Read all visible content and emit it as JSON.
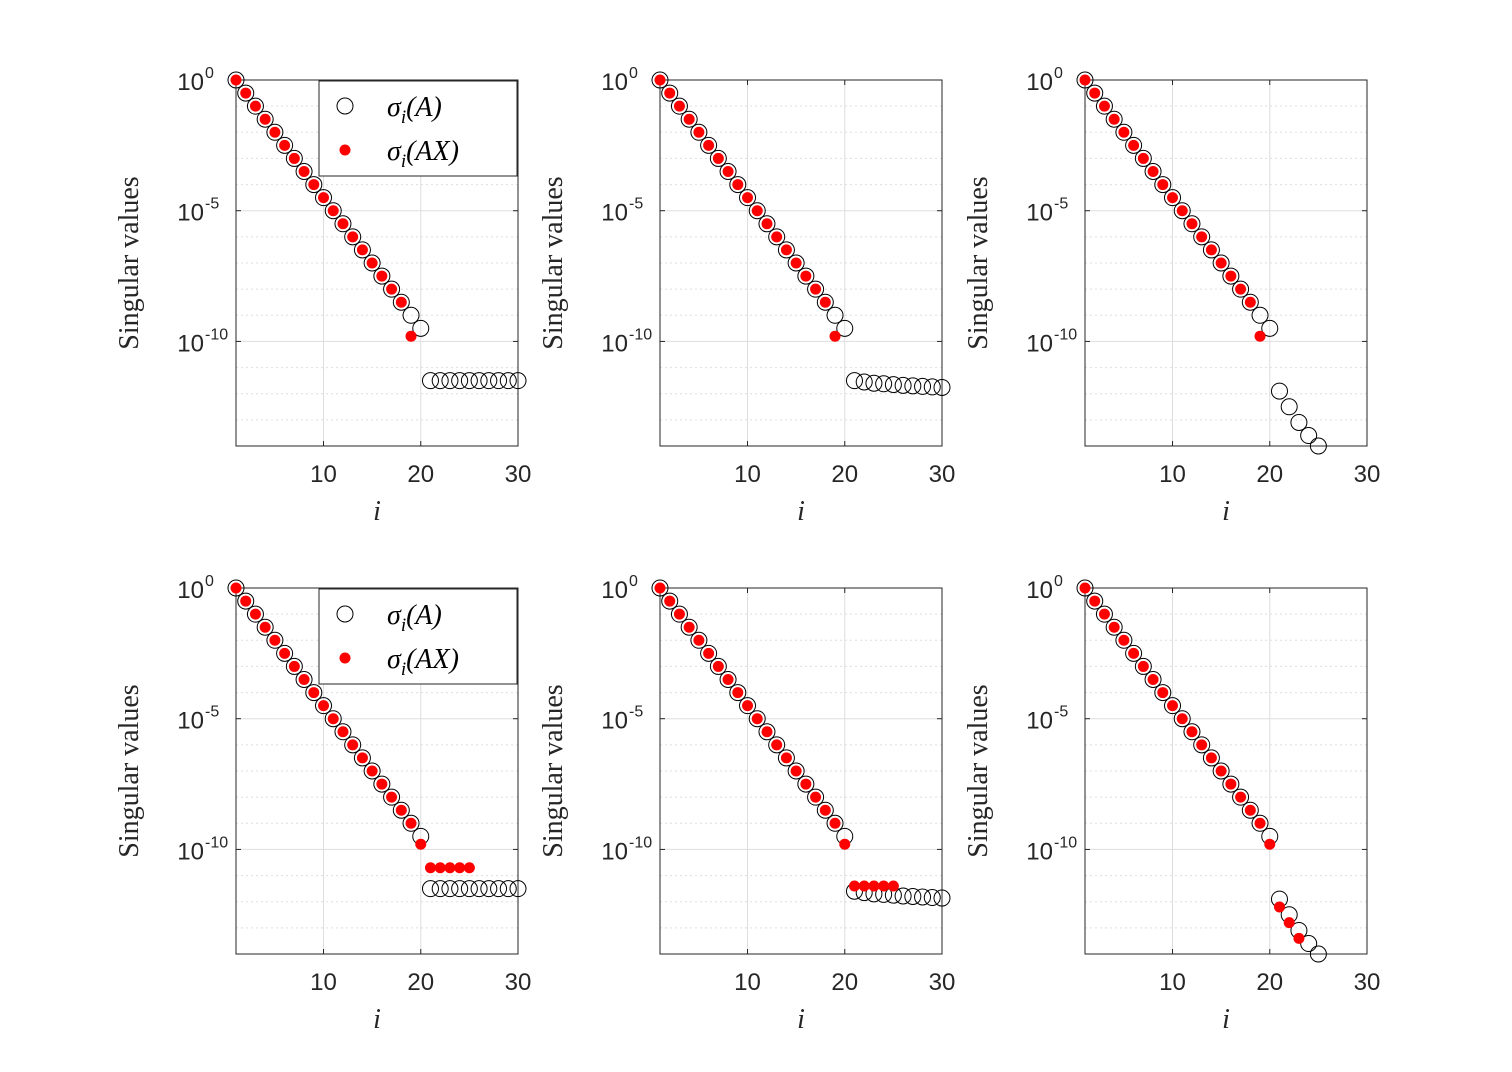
{
  "figure": {
    "colors": {
      "sigma_A": "#000000",
      "sigma_AX": "#ff0000",
      "grid": "#dedede"
    }
  },
  "chart_data": [
    {
      "type": "scatter",
      "xlabel": "i",
      "ylabel": "Singular values",
      "xlim": [
        1,
        30
      ],
      "ylim_log10": [
        -14,
        0
      ],
      "yscale": "log",
      "grid": true,
      "legend": "top-right",
      "xticks": [
        "10",
        "20",
        "30"
      ],
      "yticks": [
        {
          "base": "10",
          "exp": "0"
        },
        {
          "base": "10",
          "exp": "-5"
        },
        {
          "base": "10",
          "exp": "-10"
        }
      ],
      "series": [
        {
          "name": "σi(A)",
          "marker": "open-circle",
          "x": [
            1,
            2,
            3,
            4,
            5,
            6,
            7,
            8,
            9,
            10,
            11,
            12,
            13,
            14,
            15,
            16,
            17,
            18,
            19,
            20,
            21,
            22,
            23,
            24,
            25,
            26,
            27,
            28,
            29,
            30
          ],
          "log10_y": [
            0,
            -0.5,
            -1,
            -1.5,
            -2,
            -2.5,
            -3,
            -3.5,
            -4,
            -4.5,
            -5,
            -5.5,
            -6,
            -6.5,
            -7,
            -7.5,
            -8,
            -8.5,
            -9,
            -9.5,
            -11.5,
            -11.5,
            -11.5,
            -11.5,
            -11.5,
            -11.5,
            -11.5,
            -11.5,
            -11.5,
            -11.5
          ]
        },
        {
          "name": "σi(AX)",
          "marker": "filled-dot",
          "x": [
            1,
            2,
            3,
            4,
            5,
            6,
            7,
            8,
            9,
            10,
            11,
            12,
            13,
            14,
            15,
            16,
            17,
            18,
            19
          ],
          "log10_y": [
            0,
            -0.5,
            -1,
            -1.5,
            -2,
            -2.5,
            -3,
            -3.5,
            -4,
            -4.5,
            -5,
            -5.5,
            -6,
            -6.5,
            -7,
            -7.5,
            -8,
            -8.5,
            -9.8
          ]
        }
      ]
    },
    {
      "type": "scatter",
      "xlabel": "i",
      "ylabel": "Singular values",
      "xlim": [
        1,
        30
      ],
      "ylim_log10": [
        -14,
        0
      ],
      "yscale": "log",
      "grid": true,
      "xticks": [
        "10",
        "20",
        "30"
      ],
      "yticks": [
        {
          "base": "10",
          "exp": "0"
        },
        {
          "base": "10",
          "exp": "-5"
        },
        {
          "base": "10",
          "exp": "-10"
        }
      ],
      "series": [
        {
          "marker": "open-circle",
          "x": [
            1,
            2,
            3,
            4,
            5,
            6,
            7,
            8,
            9,
            10,
            11,
            12,
            13,
            14,
            15,
            16,
            17,
            18,
            19,
            20,
            21,
            22,
            23,
            24,
            25,
            26,
            27,
            28,
            29,
            30
          ],
          "log10_y": [
            0,
            -0.5,
            -1,
            -1.5,
            -2,
            -2.5,
            -3,
            -3.5,
            -4,
            -4.5,
            -5,
            -5.5,
            -6,
            -6.5,
            -7,
            -7.5,
            -8,
            -8.5,
            -9,
            -9.5,
            -11.5,
            -11.55,
            -11.6,
            -11.62,
            -11.65,
            -11.68,
            -11.7,
            -11.72,
            -11.74,
            -11.76
          ]
        },
        {
          "marker": "filled-dot",
          "x": [
            1,
            2,
            3,
            4,
            5,
            6,
            7,
            8,
            9,
            10,
            11,
            12,
            13,
            14,
            15,
            16,
            17,
            18,
            19
          ],
          "log10_y": [
            0,
            -0.5,
            -1,
            -1.5,
            -2,
            -2.5,
            -3,
            -3.5,
            -4,
            -4.5,
            -5,
            -5.5,
            -6,
            -6.5,
            -7,
            -7.5,
            -8,
            -8.5,
            -9.8
          ]
        }
      ]
    },
    {
      "type": "scatter",
      "xlabel": "i",
      "ylabel": "Singular values",
      "xlim": [
        1,
        30
      ],
      "ylim_log10": [
        -14,
        0
      ],
      "yscale": "log",
      "grid": true,
      "xticks": [
        "10",
        "20",
        "30"
      ],
      "yticks": [
        {
          "base": "10",
          "exp": "0"
        },
        {
          "base": "10",
          "exp": "-5"
        },
        {
          "base": "10",
          "exp": "-10"
        }
      ],
      "series": [
        {
          "marker": "open-circle",
          "x": [
            1,
            2,
            3,
            4,
            5,
            6,
            7,
            8,
            9,
            10,
            11,
            12,
            13,
            14,
            15,
            16,
            17,
            18,
            19,
            20,
            21,
            22,
            23,
            24,
            25
          ],
          "log10_y": [
            0,
            -0.5,
            -1,
            -1.5,
            -2,
            -2.5,
            -3,
            -3.5,
            -4,
            -4.5,
            -5,
            -5.5,
            -6,
            -6.5,
            -7,
            -7.5,
            -8,
            -8.5,
            -9,
            -9.5,
            -11.9,
            -12.5,
            -13.1,
            -13.6,
            -14
          ]
        },
        {
          "marker": "filled-dot",
          "x": [
            1,
            2,
            3,
            4,
            5,
            6,
            7,
            8,
            9,
            10,
            11,
            12,
            13,
            14,
            15,
            16,
            17,
            18,
            19
          ],
          "log10_y": [
            0,
            -0.5,
            -1,
            -1.5,
            -2,
            -2.5,
            -3,
            -3.5,
            -4,
            -4.5,
            -5,
            -5.5,
            -6,
            -6.5,
            -7,
            -7.5,
            -8,
            -8.5,
            -9.8
          ]
        }
      ]
    },
    {
      "type": "scatter",
      "xlabel": "i",
      "ylabel": "Singular values",
      "xlim": [
        1,
        30
      ],
      "ylim_log10": [
        -14,
        0
      ],
      "yscale": "log",
      "grid": true,
      "legend": "top-right",
      "xticks": [
        "10",
        "20",
        "30"
      ],
      "yticks": [
        {
          "base": "10",
          "exp": "0"
        },
        {
          "base": "10",
          "exp": "-5"
        },
        {
          "base": "10",
          "exp": "-10"
        }
      ],
      "series": [
        {
          "name": "σi(A)",
          "marker": "open-circle",
          "x": [
            1,
            2,
            3,
            4,
            5,
            6,
            7,
            8,
            9,
            10,
            11,
            12,
            13,
            14,
            15,
            16,
            17,
            18,
            19,
            20,
            21,
            22,
            23,
            24,
            25,
            26,
            27,
            28,
            29,
            30
          ],
          "log10_y": [
            0,
            -0.5,
            -1,
            -1.5,
            -2,
            -2.5,
            -3,
            -3.5,
            -4,
            -4.5,
            -5,
            -5.5,
            -6,
            -6.5,
            -7,
            -7.5,
            -8,
            -8.5,
            -9,
            -9.5,
            -11.5,
            -11.5,
            -11.5,
            -11.5,
            -11.5,
            -11.5,
            -11.5,
            -11.5,
            -11.5,
            -11.5
          ]
        },
        {
          "name": "σi(AX)",
          "marker": "filled-dot",
          "x": [
            1,
            2,
            3,
            4,
            5,
            6,
            7,
            8,
            9,
            10,
            11,
            12,
            13,
            14,
            15,
            16,
            17,
            18,
            19,
            20,
            21,
            22,
            23,
            24,
            25
          ],
          "log10_y": [
            0,
            -0.5,
            -1,
            -1.5,
            -2,
            -2.5,
            -3,
            -3.5,
            -4,
            -4.5,
            -5,
            -5.5,
            -6,
            -6.5,
            -7,
            -7.5,
            -8,
            -8.5,
            -9,
            -9.8,
            -10.7,
            -10.7,
            -10.7,
            -10.7,
            -10.7
          ]
        }
      ]
    },
    {
      "type": "scatter",
      "xlabel": "i",
      "ylabel": "Singular values",
      "xlim": [
        1,
        30
      ],
      "ylim_log10": [
        -14,
        0
      ],
      "yscale": "log",
      "grid": true,
      "xticks": [
        "10",
        "20",
        "30"
      ],
      "yticks": [
        {
          "base": "10",
          "exp": "0"
        },
        {
          "base": "10",
          "exp": "-5"
        },
        {
          "base": "10",
          "exp": "-10"
        }
      ],
      "series": [
        {
          "marker": "open-circle",
          "x": [
            1,
            2,
            3,
            4,
            5,
            6,
            7,
            8,
            9,
            10,
            11,
            12,
            13,
            14,
            15,
            16,
            17,
            18,
            19,
            20,
            21,
            22,
            23,
            24,
            25,
            26,
            27,
            28,
            29,
            30
          ],
          "log10_y": [
            0,
            -0.5,
            -1,
            -1.5,
            -2,
            -2.5,
            -3,
            -3.5,
            -4,
            -4.5,
            -5,
            -5.5,
            -6,
            -6.5,
            -7,
            -7.5,
            -8,
            -8.5,
            -9,
            -9.5,
            -11.6,
            -11.65,
            -11.7,
            -11.72,
            -11.75,
            -11.78,
            -11.8,
            -11.82,
            -11.84,
            -11.86
          ]
        },
        {
          "marker": "filled-dot",
          "x": [
            1,
            2,
            3,
            4,
            5,
            6,
            7,
            8,
            9,
            10,
            11,
            12,
            13,
            14,
            15,
            16,
            17,
            18,
            19,
            20,
            21,
            22,
            23,
            24,
            25
          ],
          "log10_y": [
            0,
            -0.5,
            -1,
            -1.5,
            -2,
            -2.5,
            -3,
            -3.5,
            -4,
            -4.5,
            -5,
            -5.5,
            -6,
            -6.5,
            -7,
            -7.5,
            -8,
            -8.5,
            -9,
            -9.8,
            -11.4,
            -11.4,
            -11.4,
            -11.4,
            -11.4
          ]
        }
      ]
    },
    {
      "type": "scatter",
      "xlabel": "i",
      "ylabel": "Singular values",
      "xlim": [
        1,
        30
      ],
      "ylim_log10": [
        -14,
        0
      ],
      "yscale": "log",
      "grid": true,
      "xticks": [
        "10",
        "20",
        "30"
      ],
      "yticks": [
        {
          "base": "10",
          "exp": "0"
        },
        {
          "base": "10",
          "exp": "-5"
        },
        {
          "base": "10",
          "exp": "-10"
        }
      ],
      "series": [
        {
          "marker": "open-circle",
          "x": [
            1,
            2,
            3,
            4,
            5,
            6,
            7,
            8,
            9,
            10,
            11,
            12,
            13,
            14,
            15,
            16,
            17,
            18,
            19,
            20,
            21,
            22,
            23,
            24,
            25
          ],
          "log10_y": [
            0,
            -0.5,
            -1,
            -1.5,
            -2,
            -2.5,
            -3,
            -3.5,
            -4,
            -4.5,
            -5,
            -5.5,
            -6,
            -6.5,
            -7,
            -7.5,
            -8,
            -8.5,
            -9,
            -9.5,
            -11.9,
            -12.5,
            -13.1,
            -13.6,
            -14
          ]
        },
        {
          "marker": "filled-dot",
          "x": [
            1,
            2,
            3,
            4,
            5,
            6,
            7,
            8,
            9,
            10,
            11,
            12,
            13,
            14,
            15,
            16,
            17,
            18,
            19,
            20,
            21,
            22,
            23
          ],
          "log10_y": [
            0,
            -0.5,
            -1,
            -1.5,
            -2,
            -2.5,
            -3,
            -3.5,
            -4,
            -4.5,
            -5,
            -5.5,
            -6,
            -6.5,
            -7,
            -7.5,
            -8,
            -8.5,
            -9,
            -9.8,
            -12.2,
            -12.8,
            -13.4
          ]
        }
      ]
    }
  ]
}
